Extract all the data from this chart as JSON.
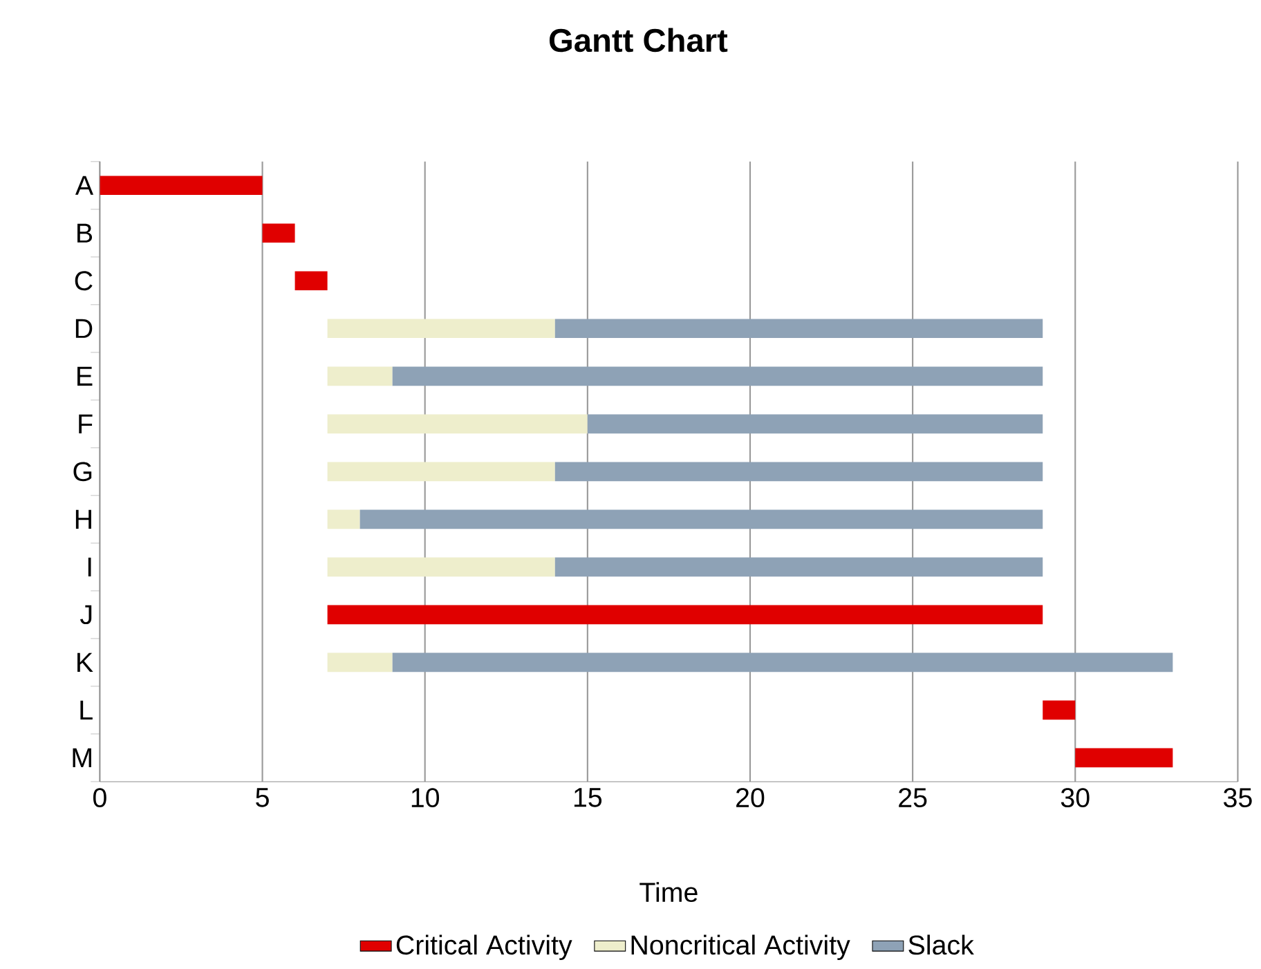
{
  "chart_data": {
    "type": "bar",
    "orientation": "horizontal",
    "title": "Gantt Chart",
    "xlabel": "Time",
    "categories": [
      "A",
      "B",
      "C",
      "D",
      "E",
      "F",
      "G",
      "H",
      "I",
      "J",
      "K",
      "L",
      "M"
    ],
    "series": [
      {
        "name": "Critical Activity",
        "color": "#e00000",
        "base": [
          0,
          5,
          6,
          null,
          null,
          null,
          null,
          null,
          null,
          7,
          null,
          29,
          30
        ],
        "values": [
          5,
          1,
          1,
          null,
          null,
          null,
          null,
          null,
          null,
          22,
          null,
          1,
          3
        ]
      },
      {
        "name": "Noncritical Activity",
        "color": "#eeeecc",
        "base": [
          null,
          null,
          null,
          7,
          7,
          7,
          7,
          7,
          7,
          null,
          7,
          null,
          null
        ],
        "values": [
          null,
          null,
          null,
          7,
          2,
          8,
          7,
          1,
          7,
          null,
          2,
          null,
          null
        ]
      },
      {
        "name": "Slack",
        "color": "#8ea2b6",
        "base": [
          null,
          null,
          null,
          14,
          9,
          15,
          14,
          8,
          14,
          null,
          9,
          null,
          null
        ],
        "values": [
          null,
          null,
          null,
          15,
          20,
          14,
          15,
          21,
          15,
          null,
          24,
          null,
          null
        ]
      }
    ],
    "xlim": [
      0,
      35
    ],
    "xticks": [
      0,
      5,
      10,
      15,
      20,
      25,
      30,
      35
    ],
    "grid": "x",
    "legend": "bottom"
  }
}
